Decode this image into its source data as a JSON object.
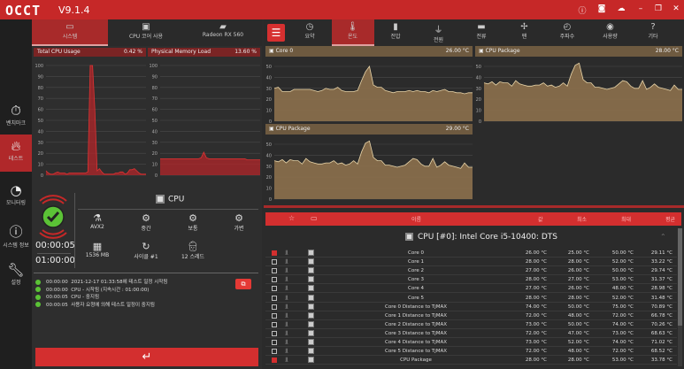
{
  "app": {
    "logo": "OCCT",
    "version": "V9.1.4"
  },
  "window_buttons": [
    "info-icon",
    "camera-icon",
    "cloud-upload-icon",
    "minimize-icon",
    "restore-icon",
    "close-icon"
  ],
  "sidebar": {
    "items": [
      {
        "label": "벤치마크",
        "icon": "stopwatch-icon"
      },
      {
        "label": "테스트",
        "icon": "flame-icon",
        "active": true
      },
      {
        "label": "모니터링",
        "icon": "gauge-icon"
      },
      {
        "label": "시스템 정보",
        "icon": "info-icon"
      },
      {
        "label": "설정",
        "icon": "wrench-icon"
      }
    ]
  },
  "left_tabs": [
    {
      "label": "시스템",
      "active": true
    },
    {
      "label": "CPU 코어 사용"
    },
    {
      "label": "Radeon RX 560"
    }
  ],
  "left_charts": [
    {
      "title": "Total CPU Usage",
      "value": "0.42 %",
      "color": "#b3262a",
      "ylim": [
        0,
        100
      ],
      "yticks": [
        0,
        10,
        20,
        30,
        40,
        50,
        60,
        70,
        80,
        90,
        100
      ],
      "values": [
        4,
        2,
        1,
        1,
        2,
        3,
        2,
        2,
        2,
        1,
        2,
        2,
        2,
        2,
        2,
        2,
        2,
        2,
        3,
        100,
        100,
        60,
        4,
        6,
        3,
        1,
        1,
        1,
        1,
        1,
        2,
        2,
        3,
        3,
        1,
        2,
        5,
        5,
        6,
        4,
        2,
        1,
        1,
        1
      ]
    },
    {
      "title": "Physical Memory Load",
      "value": "13.60 %",
      "color": "#b3262a",
      "ylim": [
        0,
        100
      ],
      "yticks": [
        0,
        10,
        20,
        30,
        40,
        50,
        60,
        70,
        80,
        90,
        100
      ],
      "values": [
        15,
        15,
        15,
        15,
        15,
        15,
        15,
        15,
        15,
        15,
        15,
        15,
        15,
        15,
        15,
        15,
        16,
        21,
        16,
        15,
        15,
        15,
        15,
        15,
        15,
        15,
        15,
        15,
        15,
        15,
        15,
        15,
        15,
        15,
        14,
        14,
        14,
        14,
        14,
        14
      ]
    }
  ],
  "test": {
    "device": "CPU",
    "elapsed": "00:00:05",
    "duration": "01:00:00",
    "options": [
      {
        "icon": "flask-icon",
        "label": "AVX2"
      },
      {
        "icon": "gears-icon",
        "label": "중간"
      },
      {
        "icon": "gears-icon",
        "label": "보통"
      },
      {
        "icon": "gears-icon",
        "label": "가변"
      },
      {
        "icon": "chip-icon",
        "label": "1536 MB"
      },
      {
        "icon": "refresh-icon",
        "label": "사이클 #1"
      },
      {
        "icon": "worker-icon",
        "label": "12 스레드"
      }
    ]
  },
  "log": [
    {
      "time": "00:00:00",
      "text": "2021-12-17 01:33:58에 테스트 일정 시작됨"
    },
    {
      "time": "00:00:00",
      "text": "CPU - 시작됨 (지속시간 : 01:00:00)"
    },
    {
      "time": "00:00:05",
      "text": "CPU - 중지됨"
    },
    {
      "time": "00:00:05",
      "text": "사용자 요청에 의해 테스트 일정이 중지됨"
    }
  ],
  "start_button_icon": "return-arrow-icon",
  "right_tabs": [
    {
      "label": "요약",
      "icon": "gauge-icon"
    },
    {
      "label": "온도",
      "icon": "thermometer-icon",
      "active": true
    },
    {
      "label": "전압",
      "icon": "battery-icon"
    },
    {
      "label": "전원",
      "icon": "plug-icon"
    },
    {
      "label": "전류",
      "icon": "memory-icon"
    },
    {
      "label": "팬",
      "icon": "fan-icon"
    },
    {
      "label": "주파수",
      "icon": "speedometer-icon"
    },
    {
      "label": "사용량",
      "icon": "meter-icon"
    },
    {
      "label": "기타",
      "icon": "question-icon"
    }
  ],
  "temp_charts": [
    {
      "title": "Core 0",
      "value": "26.00 °C",
      "ylim": [
        0,
        50
      ],
      "yticks": [
        0,
        10,
        20,
        30,
        40,
        50
      ],
      "values": [
        30,
        31,
        27,
        27,
        27,
        29,
        29,
        29,
        29,
        29,
        28,
        27,
        28,
        30,
        29,
        29,
        31,
        28,
        27,
        27,
        27,
        28,
        37,
        45,
        50,
        33,
        31,
        31,
        28,
        27,
        26,
        27,
        27,
        27,
        28,
        27,
        28,
        27,
        27,
        26,
        28,
        27,
        28,
        29,
        27,
        27,
        26,
        26,
        25,
        26,
        26
      ]
    },
    {
      "title": "CPU Package",
      "value": "28.00 °C",
      "ylim": [
        0,
        50
      ],
      "yticks": [
        0,
        10,
        20,
        30,
        40,
        50
      ],
      "values": [
        35,
        34,
        36,
        33,
        36,
        35,
        35,
        32,
        37,
        34,
        33,
        32,
        32,
        33,
        33,
        35,
        32,
        33,
        31,
        32,
        35,
        32,
        43,
        51,
        53,
        38,
        35,
        35,
        31,
        31,
        30,
        29,
        30,
        31,
        34,
        37,
        36,
        32,
        30,
        30,
        37,
        29,
        31,
        34,
        31,
        30,
        29,
        28,
        33,
        29,
        29
      ]
    },
    {
      "title": "CPU Package",
      "value": "29.00 °C",
      "ylim": [
        0,
        50
      ],
      "yticks": [
        0,
        10,
        20,
        30,
        40,
        50
      ],
      "values": [
        35,
        34,
        36,
        33,
        36,
        35,
        35,
        32,
        37,
        34,
        33,
        32,
        32,
        33,
        33,
        35,
        32,
        33,
        31,
        32,
        35,
        32,
        43,
        51,
        53,
        38,
        35,
        35,
        31,
        31,
        30,
        29,
        30,
        31,
        34,
        37,
        36,
        32,
        30,
        30,
        37,
        29,
        31,
        34,
        31,
        30,
        29,
        28,
        33,
        29,
        29
      ]
    }
  ],
  "table": {
    "headers": {
      "name": "이름",
      "value": "값",
      "min": "최소",
      "max": "최대",
      "avg": "평균"
    },
    "group": "CPU [#0]: Intel Core i5-10400: DTS",
    "rows": [
      {
        "checked": true,
        "name": "Core 0",
        "value": "26.00 °C",
        "min": "25.00 °C",
        "max": "50.00 °C",
        "avg": "29.11 °C"
      },
      {
        "checked": false,
        "name": "Core 1",
        "value": "28.00 °C",
        "min": "28.00 °C",
        "max": "52.00 °C",
        "avg": "33.22 °C"
      },
      {
        "checked": false,
        "name": "Core 2",
        "value": "27.00 °C",
        "min": "26.00 °C",
        "max": "50.00 °C",
        "avg": "29.74 °C"
      },
      {
        "checked": false,
        "name": "Core 3",
        "value": "28.00 °C",
        "min": "27.00 °C",
        "max": "53.00 °C",
        "avg": "31.37 °C"
      },
      {
        "checked": false,
        "name": "Core 4",
        "value": "27.00 °C",
        "min": "26.00 °C",
        "max": "48.00 °C",
        "avg": "28.98 °C"
      },
      {
        "checked": false,
        "name": "Core 5",
        "value": "28.00 °C",
        "min": "28.00 °C",
        "max": "52.00 °C",
        "avg": "31.48 °C"
      },
      {
        "checked": false,
        "name": "Core 0 Distance to TjMAX",
        "value": "74.00 °C",
        "min": "50.00 °C",
        "max": "75.00 °C",
        "avg": "70.89 °C"
      },
      {
        "checked": false,
        "name": "Core 1 Distance to TjMAX",
        "value": "72.00 °C",
        "min": "48.00 °C",
        "max": "72.00 °C",
        "avg": "66.78 °C"
      },
      {
        "checked": false,
        "name": "Core 2 Distance to TjMAX",
        "value": "73.00 °C",
        "min": "50.00 °C",
        "max": "74.00 °C",
        "avg": "70.26 °C"
      },
      {
        "checked": false,
        "name": "Core 3 Distance to TjMAX",
        "value": "72.00 °C",
        "min": "47.00 °C",
        "max": "73.00 °C",
        "avg": "68.63 °C"
      },
      {
        "checked": false,
        "name": "Core 4 Distance to TjMAX",
        "value": "73.00 °C",
        "min": "52.00 °C",
        "max": "74.00 °C",
        "avg": "71.02 °C"
      },
      {
        "checked": false,
        "name": "Core 5 Distance to TjMAX",
        "value": "72.00 °C",
        "min": "48.00 °C",
        "max": "72.00 °C",
        "avg": "68.52 °C"
      },
      {
        "checked": true,
        "name": "CPU Package",
        "value": "28.00 °C",
        "min": "28.00 °C",
        "max": "53.00 °C",
        "avg": "33.78 °C"
      }
    ]
  }
}
